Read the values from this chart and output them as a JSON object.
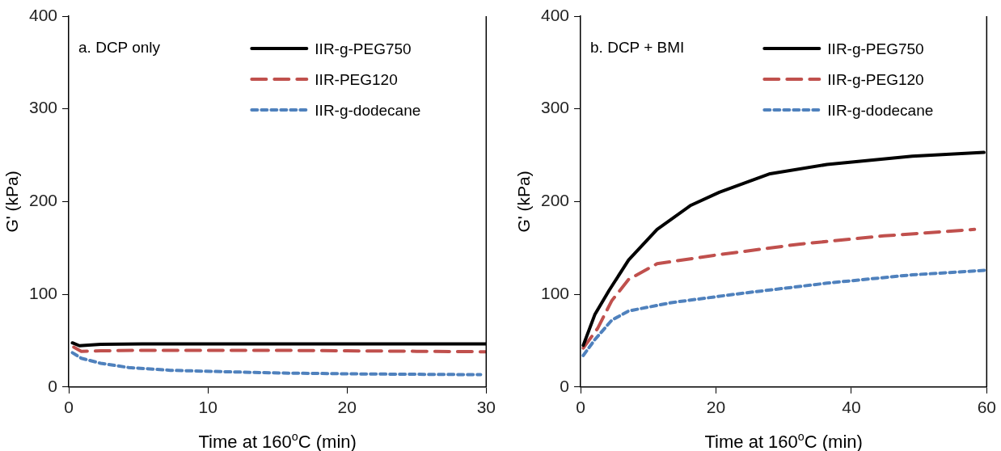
{
  "chart_data": [
    {
      "type": "line",
      "xlabel": "Time at 160$^{o}$C (min)",
      "ylabel": "G' (kPa)",
      "xlim": [
        0,
        30
      ],
      "xticks": [
        0,
        10,
        20,
        30
      ],
      "ylim": [
        0,
        400
      ],
      "yticks": [
        0,
        100,
        200,
        300,
        400
      ],
      "grid": false,
      "legend": "top right",
      "marker": "none",
      "annotations": [
        "a. DCP only"
      ],
      "series": [
        {
          "name": "IIR-g-PEG750",
          "color": "#000000",
          "line_style": "solid",
          "x": [
            0.26,
            0.77,
            2.3,
            5.3,
            10,
            15,
            20,
            25,
            30
          ],
          "values": [
            47.6,
            44.5,
            46,
            46.5,
            46.5,
            46.5,
            46.5,
            46.5,
            46.5
          ]
        },
        {
          "name": "IIR-PEG120",
          "color": "#c0504d",
          "line_style": "dashed",
          "x": [
            0.36,
            0.9,
            2.3,
            5,
            10,
            15,
            20,
            25,
            30
          ],
          "values": [
            43,
            38.5,
            39,
            39.5,
            39.5,
            39.5,
            39,
            38.5,
            38
          ]
        },
        {
          "name": "IIR-g-dodecane",
          "color": "#4f81bd",
          "line_style": "dotted",
          "x": [
            0.26,
            0.9,
            2.3,
            4.3,
            7.3,
            11.4,
            15.4,
            21.5,
            29.6
          ],
          "values": [
            37,
            31,
            25.5,
            21,
            18,
            16.4,
            15,
            14,
            13.3
          ]
        }
      ]
    },
    {
      "type": "line",
      "xlabel": "Time at 160$^{o}$C (min)",
      "ylabel": "G' (kPa)",
      "xlim": [
        0,
        60
      ],
      "xticks": [
        0,
        20,
        40,
        60
      ],
      "ylim": [
        0,
        400
      ],
      "yticks": [
        0,
        100,
        200,
        300,
        400
      ],
      "grid": false,
      "legend": "top right",
      "marker": "none",
      "annotations": [
        "b. DCP + BMI"
      ],
      "series": [
        {
          "name": "IIR-g-PEG750",
          "color": "#000000",
          "line_style": "solid",
          "x": [
            0.4,
            2.1,
            4.2,
            7.1,
            11.3,
            16.3,
            20.5,
            28,
            36.4,
            49,
            59.6
          ],
          "values": [
            45,
            78,
            104,
            137,
            170,
            196,
            210,
            230,
            240,
            249,
            253
          ]
        },
        {
          "name": "IIR-g-PEG120",
          "color": "#c0504d",
          "line_style": "dashed",
          "x": [
            0.4,
            2.5,
            4.6,
            7.1,
            11.3,
            19.7,
            32.2,
            44.8,
            58.2
          ],
          "values": [
            42,
            63,
            93,
            116,
            133,
            142,
            154,
            163,
            170
          ]
        },
        {
          "name": "IIR-g-dodecane",
          "color": "#4f81bd",
          "line_style": "dotted",
          "x": [
            0.4,
            2.1,
            4.6,
            7.1,
            13.4,
            23.8,
            36.4,
            49,
            60
          ],
          "values": [
            34,
            51,
            72,
            82,
            91,
            101,
            112,
            121,
            126
          ]
        }
      ]
    }
  ]
}
